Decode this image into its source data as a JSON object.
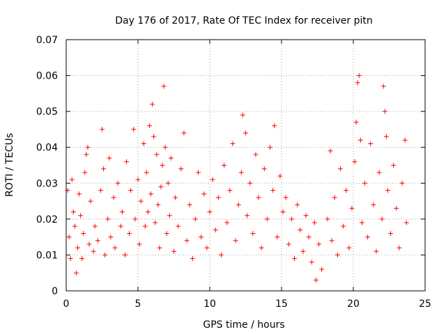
{
  "chart_data": {
    "type": "scatter",
    "title": "Day 176 of 2017, Rate Of TEC Index for receiver pitn",
    "xlabel": "GPS time / hours",
    "ylabel": "ROTI / TECUs",
    "xlim": [
      0,
      25
    ],
    "ylim": [
      0,
      0.07
    ],
    "xticks": [
      0,
      5,
      10,
      15,
      20,
      25
    ],
    "yticks": [
      0,
      0.01,
      0.02,
      0.03,
      0.04,
      0.05,
      0.06,
      0.07
    ],
    "xtick_labels": [
      "0",
      "5",
      "10",
      "15",
      "20",
      "25"
    ],
    "ytick_labels": [
      "0",
      "0.01",
      "0.02",
      "0.03",
      "0.04",
      "0.05",
      "0.06",
      "0.07"
    ],
    "grid": true,
    "marker": "plus",
    "series": [
      {
        "name": "ROTI",
        "color": "#ff0000",
        "points": [
          [
            0.1,
            0.028
          ],
          [
            0.2,
            0.015
          ],
          [
            0.3,
            0.009
          ],
          [
            0.4,
            0.031
          ],
          [
            0.5,
            0.022
          ],
          [
            0.6,
            0.018
          ],
          [
            0.7,
            0.005
          ],
          [
            0.8,
            0.012
          ],
          [
            0.9,
            0.027
          ],
          [
            1.0,
            0.021
          ],
          [
            1.1,
            0.009
          ],
          [
            1.2,
            0.016
          ],
          [
            1.3,
            0.033
          ],
          [
            1.4,
            0.038
          ],
          [
            1.5,
            0.04
          ],
          [
            1.6,
            0.013
          ],
          [
            1.7,
            0.025
          ],
          [
            1.9,
            0.011
          ],
          [
            2.0,
            0.018
          ],
          [
            2.2,
            0.014
          ],
          [
            2.4,
            0.028
          ],
          [
            2.5,
            0.045
          ],
          [
            2.6,
            0.034
          ],
          [
            2.7,
            0.01
          ],
          [
            2.9,
            0.02
          ],
          [
            3.0,
            0.037
          ],
          [
            3.1,
            0.015
          ],
          [
            3.3,
            0.026
          ],
          [
            3.4,
            0.012
          ],
          [
            3.6,
            0.03
          ],
          [
            3.8,
            0.018
          ],
          [
            3.9,
            0.022
          ],
          [
            4.1,
            0.01
          ],
          [
            4.2,
            0.036
          ],
          [
            4.4,
            0.016
          ],
          [
            4.5,
            0.028
          ],
          [
            4.7,
            0.045
          ],
          [
            4.8,
            0.02
          ],
          [
            5.0,
            0.031
          ],
          [
            5.1,
            0.013
          ],
          [
            5.2,
            0.025
          ],
          [
            5.4,
            0.041
          ],
          [
            5.5,
            0.018
          ],
          [
            5.6,
            0.033
          ],
          [
            5.7,
            0.022
          ],
          [
            5.8,
            0.046
          ],
          [
            5.9,
            0.027
          ],
          [
            6.0,
            0.052
          ],
          [
            6.1,
            0.043
          ],
          [
            6.2,
            0.019
          ],
          [
            6.3,
            0.038
          ],
          [
            6.4,
            0.024
          ],
          [
            6.5,
            0.012
          ],
          [
            6.6,
            0.029
          ],
          [
            6.7,
            0.035
          ],
          [
            6.8,
            0.057
          ],
          [
            6.9,
            0.04
          ],
          [
            7.0,
            0.016
          ],
          [
            7.1,
            0.03
          ],
          [
            7.2,
            0.021
          ],
          [
            7.3,
            0.037
          ],
          [
            7.5,
            0.011
          ],
          [
            7.6,
            0.026
          ],
          [
            7.8,
            0.018
          ],
          [
            8.0,
            0.034
          ],
          [
            8.2,
            0.044
          ],
          [
            8.4,
            0.014
          ],
          [
            8.6,
            0.024
          ],
          [
            8.8,
            0.009
          ],
          [
            9.0,
            0.02
          ],
          [
            9.2,
            0.033
          ],
          [
            9.4,
            0.015
          ],
          [
            9.6,
            0.027
          ],
          [
            9.8,
            0.012
          ],
          [
            10.0,
            0.022
          ],
          [
            10.2,
            0.031
          ],
          [
            10.4,
            0.017
          ],
          [
            10.6,
            0.026
          ],
          [
            10.8,
            0.01
          ],
          [
            11.0,
            0.035
          ],
          [
            11.2,
            0.019
          ],
          [
            11.4,
            0.028
          ],
          [
            11.6,
            0.041
          ],
          [
            11.8,
            0.014
          ],
          [
            12.0,
            0.024
          ],
          [
            12.2,
            0.033
          ],
          [
            12.3,
            0.049
          ],
          [
            12.5,
            0.044
          ],
          [
            12.6,
            0.021
          ],
          [
            12.8,
            0.03
          ],
          [
            13.0,
            0.016
          ],
          [
            13.2,
            0.038
          ],
          [
            13.4,
            0.026
          ],
          [
            13.6,
            0.012
          ],
          [
            13.8,
            0.034
          ],
          [
            14.0,
            0.02
          ],
          [
            14.2,
            0.04
          ],
          [
            14.4,
            0.028
          ],
          [
            14.5,
            0.046
          ],
          [
            14.7,
            0.015
          ],
          [
            14.9,
            0.032
          ],
          [
            15.1,
            0.022
          ],
          [
            15.3,
            0.026
          ],
          [
            15.5,
            0.013
          ],
          [
            15.7,
            0.02
          ],
          [
            15.9,
            0.009
          ],
          [
            16.1,
            0.024
          ],
          [
            16.3,
            0.017
          ],
          [
            16.5,
            0.011
          ],
          [
            16.7,
            0.021
          ],
          [
            16.9,
            0.015
          ],
          [
            17.1,
            0.008
          ],
          [
            17.3,
            0.019
          ],
          [
            17.4,
            0.003
          ],
          [
            17.6,
            0.013
          ],
          [
            17.8,
            0.006
          ],
          [
            18.2,
            0.02
          ],
          [
            18.4,
            0.039
          ],
          [
            18.5,
            0.014
          ],
          [
            18.7,
            0.026
          ],
          [
            18.9,
            0.01
          ],
          [
            19.1,
            0.034
          ],
          [
            19.3,
            0.018
          ],
          [
            19.5,
            0.028
          ],
          [
            19.7,
            0.012
          ],
          [
            19.9,
            0.023
          ],
          [
            20.1,
            0.036
          ],
          [
            20.2,
            0.047
          ],
          [
            20.3,
            0.058
          ],
          [
            20.4,
            0.06
          ],
          [
            20.5,
            0.042
          ],
          [
            20.6,
            0.019
          ],
          [
            20.8,
            0.03
          ],
          [
            21.0,
            0.015
          ],
          [
            21.2,
            0.041
          ],
          [
            21.4,
            0.024
          ],
          [
            21.6,
            0.011
          ],
          [
            21.8,
            0.033
          ],
          [
            22.0,
            0.02
          ],
          [
            22.1,
            0.057
          ],
          [
            22.2,
            0.05
          ],
          [
            22.3,
            0.043
          ],
          [
            22.4,
            0.028
          ],
          [
            22.6,
            0.016
          ],
          [
            22.8,
            0.035
          ],
          [
            23.0,
            0.023
          ],
          [
            23.2,
            0.012
          ],
          [
            23.4,
            0.03
          ],
          [
            23.6,
            0.042
          ],
          [
            23.7,
            0.019
          ]
        ]
      }
    ]
  }
}
